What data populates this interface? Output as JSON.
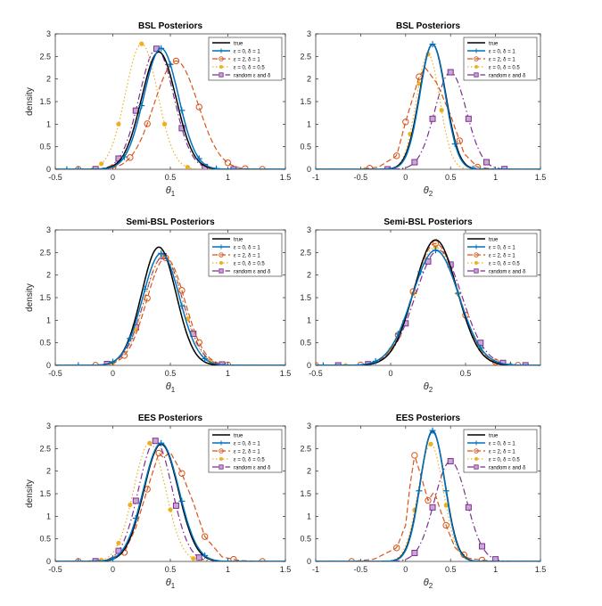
{
  "legend_labels": [
    "true",
    "ε = 0, δ = 1",
    "ε = 2, δ = 1",
    "ε = 0, δ = 0.5",
    "random ε and δ"
  ],
  "series_colors": [
    "#000000",
    "#0072bd",
    "#d95319",
    "#edb120",
    "#7e2f8e"
  ],
  "chart_data": [
    {
      "type": "line",
      "title": "BSL Posteriors",
      "ylabel": "density",
      "xlabel_base": "θ",
      "xlabel_sub": "1",
      "xlim": [
        -0.5,
        1.5
      ],
      "ylim": [
        0,
        3
      ],
      "xticks": [
        -0.5,
        0,
        0.5,
        1,
        1.5
      ],
      "xtick_labels": [
        "-0.5",
        "0",
        "0.5",
        "1",
        "1.5"
      ],
      "yticks": [
        0,
        0.5,
        1,
        1.5,
        2,
        2.5,
        3
      ],
      "ytick_labels": [
        "0",
        "0.5",
        "1",
        "1.5",
        "2",
        "2.5",
        "3"
      ],
      "legend_position": "top-right",
      "series": [
        {
          "kind": "gauss",
          "mu": 0.4,
          "peak": 2.6,
          "sigma": 0.15
        },
        {
          "kind": "gauss",
          "mu": 0.42,
          "peak": 2.68,
          "sigma": 0.15,
          "markers": [
            -0.4,
            -0.3,
            0.1,
            0.25,
            0.42,
            0.5,
            0.6,
            0.75,
            0.9
          ]
        },
        {
          "kind": "gauss",
          "mu": 0.55,
          "peak": 2.4,
          "sigma": 0.19,
          "markers": [
            -0.3,
            0.0,
            0.15,
            0.3,
            0.55,
            0.75,
            1.0,
            1.15,
            1.3
          ]
        },
        {
          "kind": "gauss",
          "mu": 0.25,
          "peak": 2.78,
          "sigma": 0.14,
          "markers": [
            -0.1,
            0.05,
            0.25,
            0.45,
            0.65
          ]
        },
        {
          "kind": "gauss",
          "mu": 0.38,
          "peak": 2.67,
          "sigma": 0.15,
          "markers": [
            -0.15,
            0.05,
            0.2,
            0.38,
            0.6,
            0.8,
            1.05
          ]
        }
      ]
    },
    {
      "type": "line",
      "title": "BSL Posteriors",
      "ylabel": "",
      "xlabel_base": "θ",
      "xlabel_sub": "2",
      "xlim": [
        -1,
        1.5
      ],
      "ylim": [
        0,
        3
      ],
      "xticks": [
        -1,
        -0.5,
        0,
        0.5,
        1,
        1.5
      ],
      "xtick_labels": [
        "-1",
        "-0.5",
        "0",
        "0.5",
        "1",
        "1.5"
      ],
      "yticks": [
        0,
        0.5,
        1,
        1.5,
        2,
        2.5,
        3
      ],
      "ytick_labels": [
        "0",
        "0.5",
        "1",
        "1.5",
        "2",
        "2.5",
        "3"
      ],
      "legend_position": "top-right",
      "series": [
        {
          "kind": "gauss",
          "mu": 0.3,
          "peak": 2.77,
          "sigma": 0.145
        },
        {
          "kind": "gauss",
          "mu": 0.3,
          "peak": 2.77,
          "sigma": 0.14,
          "markers": [
            0.3,
            0.55,
            0.75
          ]
        },
        {
          "kind": "pts",
          "pts": [
            [
              -0.5,
              0
            ],
            [
              -0.3,
              0.05
            ],
            [
              -0.1,
              0.3
            ],
            [
              0.0,
              1.05
            ],
            [
              0.15,
              2.05
            ],
            [
              0.22,
              2.25
            ],
            [
              0.35,
              1.9
            ],
            [
              0.5,
              1.2
            ],
            [
              0.65,
              0.35
            ],
            [
              0.8,
              0.05
            ],
            [
              1.0,
              0
            ]
          ],
          "markers": [
            -0.4,
            -0.1,
            0.0,
            0.15,
            0.6,
            0.8
          ]
        },
        {
          "kind": "gauss",
          "mu": 0.25,
          "peak": 2.55,
          "sigma": 0.13,
          "markers": [
            -0.45,
            0.05,
            0.15,
            0.25,
            0.4
          ]
        },
        {
          "kind": "gauss",
          "mu": 0.5,
          "peak": 2.15,
          "sigma": 0.175,
          "markers": [
            -0.2,
            0.1,
            0.3,
            0.5,
            0.7,
            0.9,
            1.1
          ]
        }
      ]
    },
    {
      "type": "line",
      "title": "Semi-BSL Posteriors",
      "ylabel": "density",
      "xlabel_base": "θ",
      "xlabel_sub": "1",
      "xlim": [
        -0.5,
        1.5
      ],
      "ylim": [
        0,
        3
      ],
      "xticks": [
        -0.5,
        0,
        0.5,
        1,
        1.5
      ],
      "xtick_labels": [
        "-0.5",
        "0",
        "0.5",
        "1",
        "1.5"
      ],
      "yticks": [
        0,
        0.5,
        1,
        1.5,
        2,
        2.5,
        3
      ],
      "ytick_labels": [
        "0",
        "0.5",
        "1",
        "1.5",
        "2",
        "2.5",
        "3"
      ],
      "legend_position": "top-right",
      "series": [
        {
          "kind": "gauss",
          "mu": 0.4,
          "peak": 2.62,
          "sigma": 0.15
        },
        {
          "kind": "gauss",
          "mu": 0.42,
          "peak": 2.48,
          "sigma": 0.16,
          "markers": [
            -0.3,
            0.0,
            0.15,
            0.28,
            0.42,
            0.6,
            0.8,
            1.0
          ]
        },
        {
          "kind": "gauss",
          "mu": 0.46,
          "peak": 2.38,
          "sigma": 0.165,
          "markers": [
            -0.15,
            0.1,
            0.3,
            0.46,
            0.6,
            0.75,
            1.0
          ]
        },
        {
          "kind": "gauss",
          "mu": 0.44,
          "peak": 2.45,
          "sigma": 0.16,
          "markers": [
            0.0,
            0.2,
            0.44,
            0.65,
            0.85
          ]
        },
        {
          "kind": "gauss",
          "mu": 0.44,
          "peak": 2.42,
          "sigma": 0.165,
          "markers": [
            -0.05,
            0.2,
            0.44,
            0.7,
            0.95
          ]
        }
      ]
    },
    {
      "type": "line",
      "title": "Semi-BSL Posteriors",
      "ylabel": "",
      "xlabel_base": "θ",
      "xlabel_sub": "2",
      "xlim": [
        -0.5,
        1
      ],
      "ylim": [
        0,
        3
      ],
      "xticks": [
        -0.5,
        0,
        0.5
      ],
      "xtick_labels": [
        "-0.5",
        "0",
        "0.5"
      ],
      "yticks": [
        0,
        0.5,
        1,
        1.5,
        2,
        2.5,
        3
      ],
      "ytick_labels": [
        "0",
        "0.5",
        "1",
        "1.5",
        "2",
        "2.5",
        "3"
      ],
      "legend_position": "top-right",
      "series": [
        {
          "kind": "gauss",
          "mu": 0.3,
          "peak": 2.78,
          "sigma": 0.143
        },
        {
          "kind": "gauss",
          "mu": 0.3,
          "peak": 2.55,
          "sigma": 0.155,
          "markers": [
            -0.45,
            -0.1,
            0.05,
            0.2,
            0.3,
            0.45,
            0.6,
            0.8
          ]
        },
        {
          "kind": "gauss",
          "mu": 0.3,
          "peak": 2.7,
          "sigma": 0.15,
          "markers": [
            -0.5,
            -0.2,
            0.05,
            0.15,
            0.3,
            0.5,
            0.7,
            0.85
          ]
        },
        {
          "kind": "gauss",
          "mu": 0.3,
          "peak": 2.62,
          "sigma": 0.15,
          "markers": [
            -0.3,
            0.0,
            0.15,
            0.3,
            0.45,
            0.6,
            0.8
          ]
        },
        {
          "kind": "gauss",
          "mu": 0.32,
          "peak": 2.55,
          "sigma": 0.155,
          "markers": [
            -0.35,
            -0.15,
            0.1,
            0.25,
            0.4,
            0.6,
            0.75,
            0.9
          ]
        }
      ]
    },
    {
      "type": "line",
      "title": "EES Posteriors",
      "ylabel": "density",
      "xlabel_base": "θ",
      "xlabel_sub": "1",
      "xlim": [
        -0.5,
        1.5
      ],
      "ylim": [
        0,
        3
      ],
      "xticks": [
        -0.5,
        0,
        0.5,
        1,
        1.5
      ],
      "xtick_labels": [
        "-0.5",
        "0",
        "0.5",
        "1",
        "1.5"
      ],
      "yticks": [
        0,
        0.5,
        1,
        1.5,
        2,
        2.5,
        3
      ],
      "ytick_labels": [
        "0",
        "0.5",
        "1",
        "1.5",
        "2",
        "2.5",
        "3"
      ],
      "legend_position": "top-right",
      "series": [
        {
          "kind": "gauss",
          "mu": 0.42,
          "peak": 2.6,
          "sigma": 0.15
        },
        {
          "kind": "gauss",
          "mu": 0.42,
          "peak": 2.62,
          "sigma": 0.155,
          "markers": [
            -0.3,
            0.0,
            0.2,
            0.42,
            0.6,
            0.8,
            1.0
          ]
        },
        {
          "kind": "pts",
          "pts": [
            [
              -0.3,
              0
            ],
            [
              -0.05,
              0.03
            ],
            [
              0.1,
              0.2
            ],
            [
              0.2,
              0.75
            ],
            [
              0.3,
              1.6
            ],
            [
              0.4,
              2.4
            ],
            [
              0.44,
              2.3
            ],
            [
              0.5,
              2.42
            ],
            [
              0.6,
              1.95
            ],
            [
              0.7,
              1.3
            ],
            [
              0.8,
              0.55
            ],
            [
              0.95,
              0.1
            ],
            [
              1.1,
              0.02
            ],
            [
              1.3,
              0
            ]
          ],
          "markers": [
            -0.3,
            0.1,
            0.3,
            0.4,
            0.6,
            0.8,
            1.05,
            1.3
          ]
        },
        {
          "kind": "gauss",
          "mu": 0.32,
          "peak": 2.62,
          "sigma": 0.14,
          "markers": [
            -0.1,
            0.05,
            0.15,
            0.32,
            0.5,
            0.7
          ]
        },
        {
          "kind": "gauss",
          "mu": 0.37,
          "peak": 2.67,
          "sigma": 0.145,
          "markers": [
            -0.15,
            0.05,
            0.2,
            0.37,
            0.55,
            0.75
          ]
        }
      ]
    },
    {
      "type": "line",
      "title": "EES Posteriors",
      "ylabel": "",
      "xlabel_base": "θ",
      "xlabel_sub": "2",
      "xlim": [
        -1,
        1.5
      ],
      "ylim": [
        0,
        3
      ],
      "xticks": [
        -1,
        -0.5,
        0,
        0.5,
        1,
        1.5
      ],
      "xtick_labels": [
        "-1",
        "-0.5",
        "0",
        "0.5",
        "1",
        "1.5"
      ],
      "yticks": [
        0,
        0.5,
        1,
        1.5,
        2,
        2.5,
        3
      ],
      "ytick_labels": [
        "0",
        "0.5",
        "1",
        "1.5",
        "2",
        "2.5",
        "3"
      ],
      "legend_position": "top-right",
      "series": [
        {
          "kind": "gauss",
          "mu": 0.3,
          "peak": 2.88,
          "sigma": 0.138
        },
        {
          "kind": "gauss",
          "mu": 0.3,
          "peak": 2.9,
          "sigma": 0.135,
          "markers": [
            0.15,
            0.3,
            0.45
          ]
        },
        {
          "kind": "pts",
          "pts": [
            [
              -0.6,
              0
            ],
            [
              -0.35,
              0.05
            ],
            [
              -0.1,
              0.3
            ],
            [
              0.0,
              0.8
            ],
            [
              0.05,
              1.7
            ],
            [
              0.1,
              2.35
            ],
            [
              0.17,
              1.9
            ],
            [
              0.25,
              1.35
            ],
            [
              0.32,
              1.55
            ],
            [
              0.4,
              1.05
            ],
            [
              0.55,
              0.3
            ],
            [
              0.7,
              0.07
            ],
            [
              0.85,
              0.03
            ],
            [
              1.0,
              0
            ]
          ],
          "markers": [
            -0.6,
            -0.1,
            0.1,
            0.25,
            0.45,
            0.65,
            0.85
          ]
        },
        {
          "kind": "gauss",
          "mu": 0.28,
          "peak": 2.6,
          "sigma": 0.14,
          "markers": [
            0.1,
            0.28,
            0.45
          ]
        },
        {
          "kind": "gauss",
          "mu": 0.5,
          "peak": 2.22,
          "sigma": 0.18,
          "markers": [
            0.1,
            0.3,
            0.5,
            0.7,
            0.85,
            1.0
          ]
        }
      ]
    }
  ]
}
